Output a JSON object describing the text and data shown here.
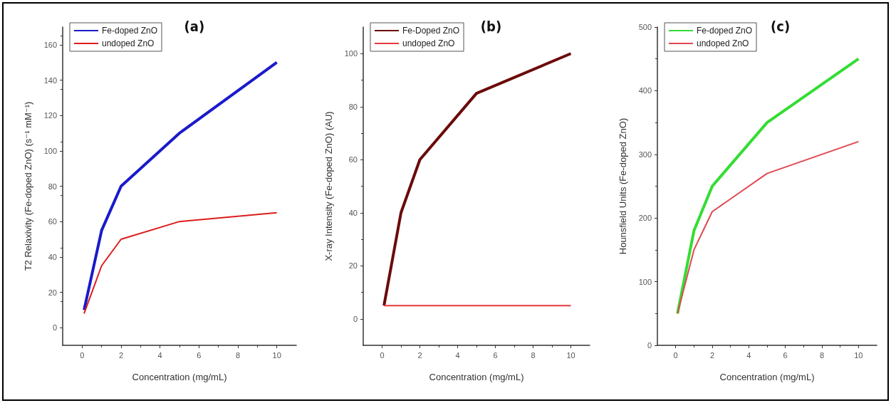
{
  "chart_data": [
    {
      "type": "line",
      "title": "(a)",
      "xlabel": "Concentration (mg/mL)",
      "ylabel": "T2 Relaxivity (Fe-doped ZnO) (s⁻¹ mM⁻¹)",
      "x": [
        0.1,
        1,
        2,
        5,
        10
      ],
      "xlim": [
        -1,
        11
      ],
      "xticks": [
        0,
        2,
        4,
        6,
        8,
        10
      ],
      "ylim": [
        -10,
        170
      ],
      "yticks": [
        0,
        20,
        40,
        60,
        80,
        100,
        120,
        140,
        160
      ],
      "grid": false,
      "legend": "top left",
      "marker": "none",
      "series": [
        {
          "name": "Fe-doped ZnO",
          "color": "#1a1acc",
          "values": [
            10,
            55,
            80,
            110,
            150
          ]
        },
        {
          "name": "undoped ZnO",
          "color": "#dd1c1c",
          "values": [
            8,
            35,
            50,
            60,
            65
          ]
        }
      ]
    },
    {
      "type": "line",
      "title": "(b)",
      "xlabel": "Concentration (mg/mL)",
      "ylabel": "X-ray Intensity (Fe-doped ZnO) (AU)",
      "x": [
        0.1,
        1,
        2,
        5,
        10
      ],
      "xlim": [
        -1,
        11
      ],
      "xticks": [
        0,
        2,
        4,
        6,
        8,
        10
      ],
      "ylim": [
        -10,
        110
      ],
      "yticks": [
        0,
        20,
        40,
        60,
        80,
        100
      ],
      "grid": false,
      "legend": "top left",
      "marker": "none",
      "series": [
        {
          "name": "Fe-Doped ZnO",
          "color": "#6b0a0a",
          "values": [
            5,
            40,
            60,
            85,
            100
          ]
        },
        {
          "name": "undoped ZnO",
          "color": "#e8393f",
          "values": [
            5,
            5,
            5,
            5,
            5
          ]
        }
      ]
    },
    {
      "type": "line",
      "title": "(c)",
      "xlabel": "Concentration (mg/mL)",
      "ylabel": "Hounsfield Units (Fe-doped ZnO)",
      "x": [
        0.1,
        1,
        2,
        5,
        10
      ],
      "xlim": [
        -1,
        11
      ],
      "xticks": [
        0,
        2,
        4,
        6,
        8,
        10
      ],
      "ylim": [
        0,
        500
      ],
      "yticks": [
        0,
        100,
        200,
        300,
        400,
        500
      ],
      "grid": false,
      "legend": "top left",
      "marker": "none",
      "series": [
        {
          "name": "Fe-doped ZnO",
          "color": "#33dd33",
          "values": [
            50,
            180,
            250,
            350,
            450
          ]
        },
        {
          "name": "undoped ZnO",
          "color": "#e0474f",
          "values": [
            50,
            150,
            210,
            270,
            320
          ]
        }
      ]
    }
  ]
}
